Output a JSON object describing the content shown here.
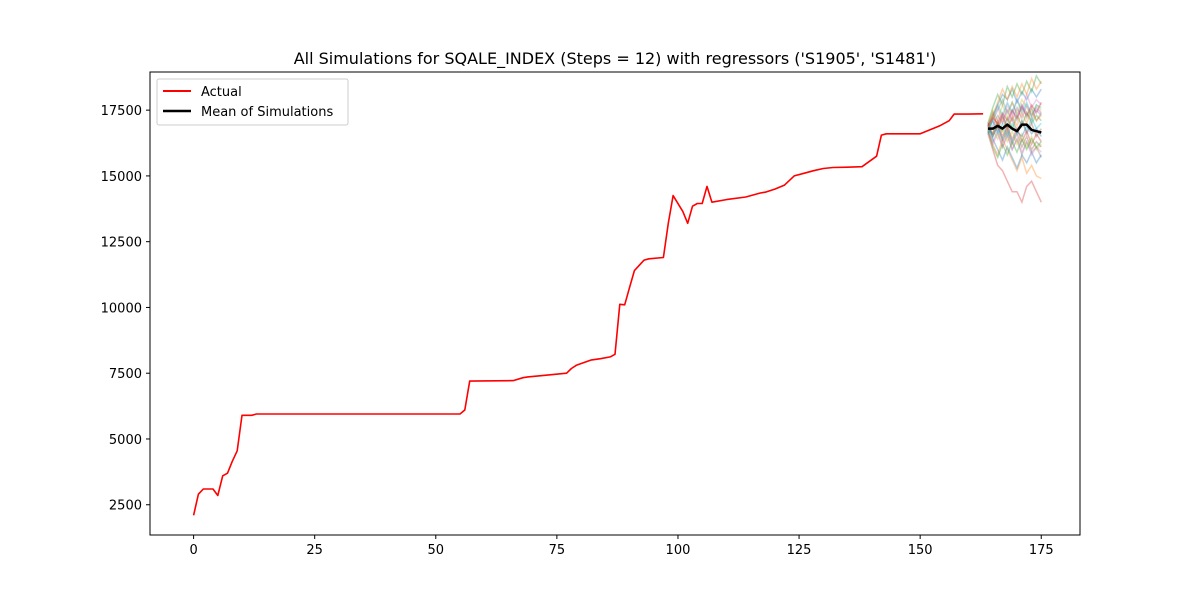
{
  "chart_data": {
    "type": "line",
    "title": "All Simulations for SQALE_INDEX (Steps = 12) with regressors ('S1905', 'S1481')",
    "xlabel": "",
    "ylabel": "",
    "xlim": [
      -9,
      183
    ],
    "ylim": [
      1350,
      18950
    ],
    "xticks": [
      0,
      25,
      50,
      75,
      100,
      125,
      150,
      175
    ],
    "yticks": [
      2500,
      5000,
      7500,
      10000,
      12500,
      15000,
      17500
    ],
    "grid": false,
    "legend_position": "top-left",
    "colors": {
      "actual": "#ff0000",
      "mean": "#000000",
      "simulations": [
        "#1f77b4",
        "#ff7f0e",
        "#2ca02c",
        "#d62728",
        "#9467bd",
        "#8c564b",
        "#e377c2",
        "#7f7f7f",
        "#bcbd22",
        "#17becf"
      ]
    },
    "legend": [
      "Actual",
      "Mean of Simulations"
    ],
    "series": [
      {
        "name": "Actual",
        "x": [
          0,
          1,
          2,
          3,
          4,
          5,
          6,
          7,
          8,
          9,
          10,
          11,
          12,
          13,
          14,
          20,
          30,
          40,
          50,
          55,
          56,
          57,
          66,
          68,
          69,
          72,
          77,
          78,
          79,
          82,
          84,
          86,
          87,
          88,
          89,
          90,
          91,
          93,
          94,
          97,
          98,
          99,
          101,
          102,
          103,
          104,
          105,
          106,
          107,
          110,
          114,
          117,
          118,
          120,
          122,
          124,
          126,
          128,
          130,
          132,
          135,
          138,
          141,
          142,
          143,
          150,
          154,
          156,
          157,
          160,
          163
        ],
        "y": [
          2100,
          2900,
          3100,
          3100,
          3100,
          2850,
          3600,
          3700,
          4150,
          4550,
          5900,
          5900,
          5900,
          5950,
          5950,
          5950,
          5950,
          5950,
          5950,
          5950,
          6100,
          7200,
          7220,
          7330,
          7360,
          7410,
          7500,
          7680,
          7800,
          8000,
          8050,
          8120,
          8220,
          10120,
          10100,
          10750,
          11400,
          11800,
          11850,
          11900,
          13200,
          14250,
          13650,
          13200,
          13850,
          13950,
          13950,
          14600,
          14000,
          14100,
          14200,
          14350,
          14380,
          14500,
          14650,
          15000,
          15100,
          15200,
          15280,
          15320,
          15330,
          15350,
          15750,
          16550,
          16600,
          16600,
          16900,
          17100,
          17350,
          17350,
          17360
        ]
      },
      {
        "name": "Mean of Simulations",
        "x": [
          164,
          165,
          166,
          167,
          168,
          169,
          170,
          171,
          172,
          173,
          174,
          175
        ],
        "y": [
          16800,
          16800,
          16900,
          16800,
          16950,
          16800,
          16700,
          16950,
          16950,
          16750,
          16700,
          16650
        ]
      }
    ],
    "simulations": {
      "x": [
        164,
        165,
        166,
        167,
        168,
        169,
        170,
        171,
        172,
        173,
        174,
        175
      ],
      "y": [
        [
          16900,
          17300,
          17700,
          18100,
          17900,
          18300,
          17800,
          18200,
          17900,
          18300,
          18000,
          18300
        ],
        [
          16700,
          16200,
          15800,
          16400,
          16000,
          15600,
          15200,
          15700,
          15100,
          15400,
          15000,
          14900
        ],
        [
          17000,
          17600,
          18100,
          17700,
          18400,
          18000,
          18500,
          18100,
          18600,
          18200,
          18800,
          18500
        ],
        [
          16600,
          16000,
          15400,
          15200,
          14800,
          14400,
          14400,
          14000,
          14600,
          14800,
          14400,
          14000
        ],
        [
          16800,
          17100,
          16700,
          17300,
          16900,
          17500,
          17100,
          17700,
          17400,
          17100,
          17500,
          17300
        ],
        [
          16900,
          16500,
          16900,
          16300,
          16700,
          16200,
          16600,
          16100,
          16500,
          16000,
          16300,
          16100
        ],
        [
          16700,
          17200,
          17600,
          17100,
          17700,
          17300,
          17900,
          17500,
          18100,
          17600,
          17900,
          17700
        ],
        [
          16800,
          16300,
          16700,
          16100,
          16600,
          16000,
          16400,
          15800,
          16300,
          15900,
          16100,
          15700
        ],
        [
          17000,
          17500,
          17100,
          17700,
          17200,
          17800,
          17400,
          17900,
          17600,
          17200,
          17700,
          17500
        ],
        [
          16600,
          17100,
          16600,
          17000,
          16500,
          17000,
          16600,
          17100,
          16700,
          17200,
          16800,
          17000
        ],
        [
          16900,
          16400,
          16000,
          15600,
          16100,
          15700,
          15300,
          15800,
          15500,
          15900,
          15500,
          15800
        ],
        [
          16700,
          17300,
          17800,
          18300,
          17900,
          18400,
          18000,
          18500,
          18100,
          18700,
          18300,
          18600
        ],
        [
          16800,
          16600,
          17000,
          16700,
          17200,
          16800,
          17300,
          16900,
          17400,
          17000,
          17300,
          17100
        ],
        [
          17000,
          16600,
          17100,
          16500,
          16900,
          16400,
          16800,
          16300,
          16700,
          16200,
          16600,
          16300
        ],
        [
          16600,
          16900,
          17300,
          17000,
          17500,
          17100,
          17600,
          17200,
          17700,
          17300,
          17600,
          17400
        ],
        [
          16900,
          17400,
          16900,
          17300,
          16800,
          17200,
          16700,
          17100,
          16600,
          17000,
          16500,
          16800
        ],
        [
          16700,
          16200,
          16600,
          16100,
          16500,
          16000,
          16400,
          15900,
          16300,
          15800,
          16100,
          15900
        ],
        [
          16800,
          17100,
          17500,
          17900,
          17400,
          17800,
          17300,
          17700,
          17200,
          17600,
          17100,
          17400
        ],
        [
          16900,
          16800,
          16400,
          16800,
          16300,
          16700,
          16200,
          16600,
          16100,
          16500,
          16000,
          16200
        ],
        [
          16600,
          17200,
          17700,
          17300,
          17800,
          17400,
          17900,
          17400,
          17800,
          17300,
          17700,
          17600
        ],
        [
          17000,
          16500,
          16900,
          16400,
          16800,
          16300,
          16700,
          16500,
          16900,
          16600,
          16800,
          16500
        ],
        [
          16800,
          17300,
          16800,
          17200,
          16700,
          17300,
          16900,
          17400,
          17000,
          17500,
          17100,
          17300
        ],
        [
          16700,
          16100,
          15700,
          16200,
          15800,
          16300,
          15900,
          16400,
          16000,
          16400,
          16100,
          16300
        ],
        [
          16900,
          17200,
          17000,
          17400,
          17100,
          17500,
          17200,
          17600,
          17300,
          17700,
          17400,
          17800
        ]
      ]
    }
  }
}
